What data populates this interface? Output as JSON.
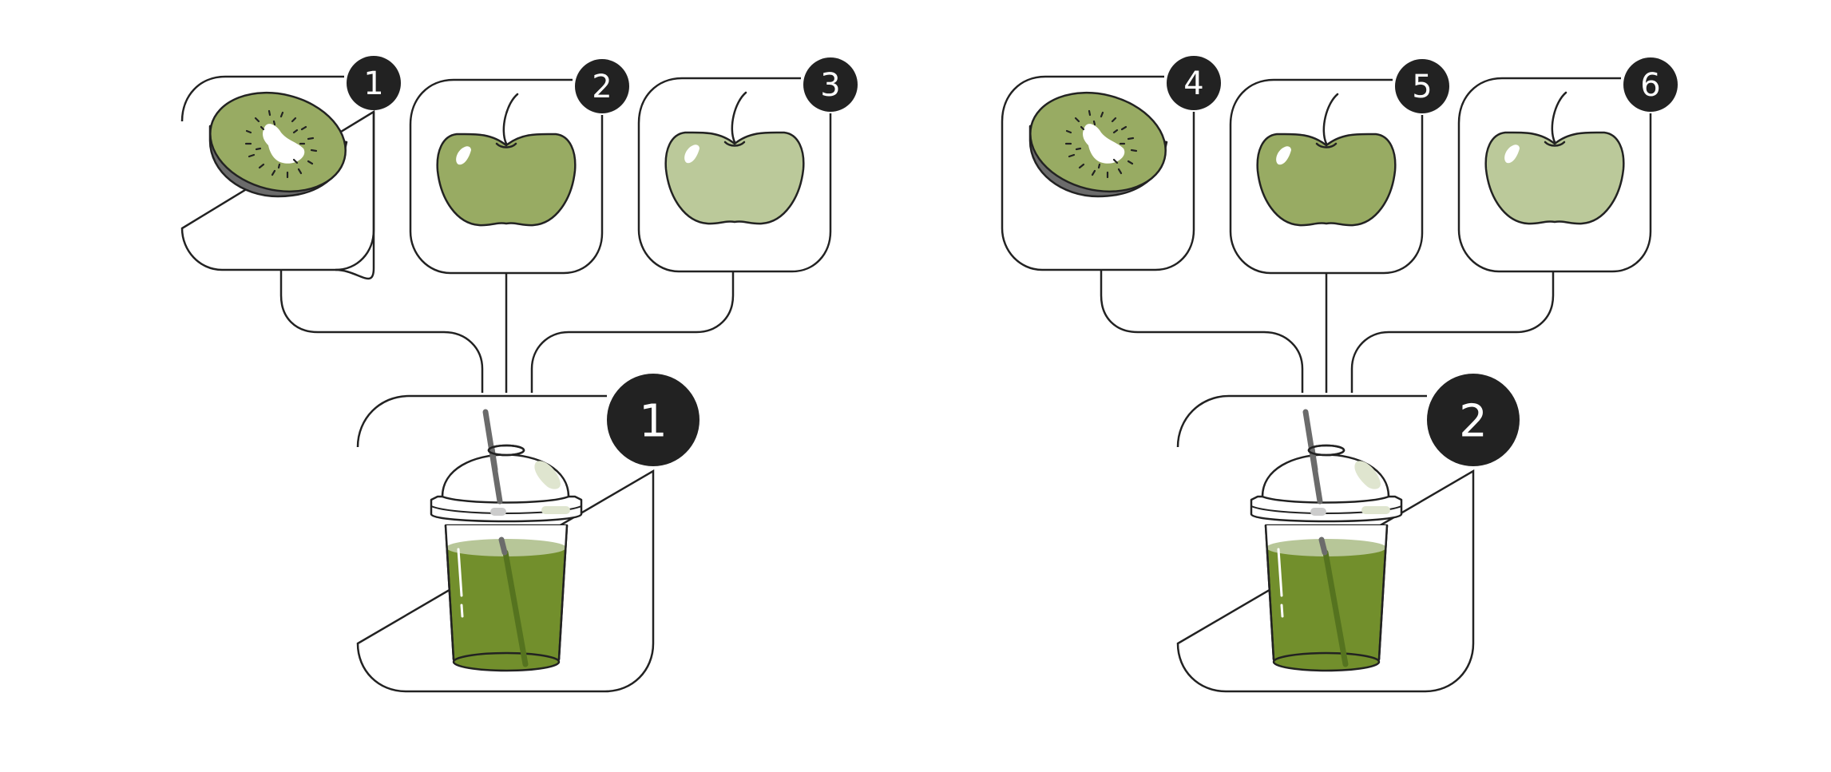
{
  "colors": {
    "stroke": "#222222",
    "badge_fill": "#222222",
    "badge_text": "#ffffff",
    "kiwi_green": "#98ab63",
    "kiwi_skin": "#6b6b6b",
    "apple_green": "#98ab63",
    "apple_light": "#bbc99a",
    "smoothie_green": "#728f2c",
    "smoothie_foam": "#b7c698",
    "straw": "#6b6b6b"
  },
  "groups": [
    {
      "result_badge": "1",
      "result_icon": "smoothie-cup-icon",
      "ingredients": [
        {
          "badge": "1",
          "icon": "kiwi-icon"
        },
        {
          "badge": "2",
          "icon": "green-apple-icon"
        },
        {
          "badge": "3",
          "icon": "light-green-apple-icon"
        }
      ]
    },
    {
      "result_badge": "2",
      "result_icon": "smoothie-cup-icon",
      "ingredients": [
        {
          "badge": "4",
          "icon": "kiwi-icon"
        },
        {
          "badge": "5",
          "icon": "green-apple-icon"
        },
        {
          "badge": "6",
          "icon": "light-green-apple-icon"
        }
      ]
    }
  ]
}
